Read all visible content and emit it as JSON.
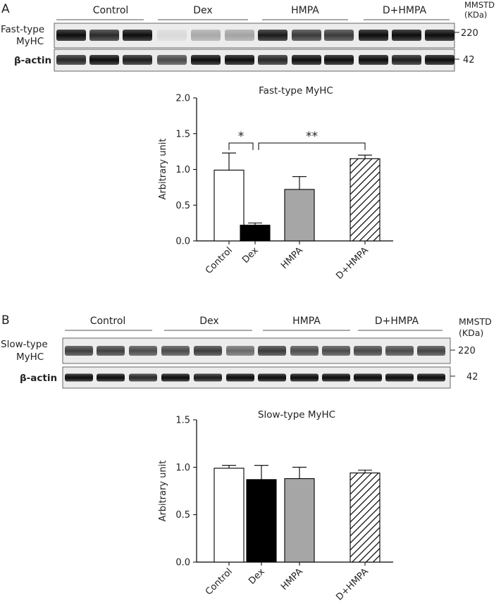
{
  "panel_a": {
    "letter": "A",
    "mmstd_line1": "MMSTD",
    "mmstd_line2": "(KDa)",
    "groups": [
      "Control",
      "Dex",
      "HMPA",
      "D+HMPA"
    ],
    "band1_label_line1": "Fast-type",
    "band1_label_line2": "MyHC",
    "band1_marker": "220",
    "band2_label": "β-actin",
    "band2_marker": "42",
    "significance": [
      "*",
      "**"
    ]
  },
  "panel_b": {
    "letter": "B",
    "mmstd_line1": "MMSTD",
    "mmstd_line2": "(KDa)",
    "groups": [
      "Control",
      "Dex",
      "HMPA",
      "D+HMPA"
    ],
    "band1_label_line1": "Slow-type",
    "band1_label_line2": "MyHC",
    "band1_marker": "220",
    "band2_label": "β-actin",
    "band2_marker": "42"
  },
  "colors": {
    "control": "#ffffff",
    "dex": "#000000",
    "hmpa": "#a6a6a6",
    "d_hmpa": "hatched"
  },
  "chart_data": [
    {
      "type": "bar",
      "title": "Fast-type MyHC",
      "xlabel": "",
      "ylabel": "Arbitrary unit",
      "categories": [
        "Control",
        "Dex",
        "HMPA",
        "D+HMPA"
      ],
      "values": [
        0.99,
        0.22,
        0.72,
        1.15
      ],
      "errors": [
        0.24,
        0.03,
        0.18,
        0.05
      ],
      "ylim": [
        0,
        2.0
      ],
      "yticks": [
        "0.0",
        "0.5",
        "1.0",
        "1.5",
        "2.0"
      ],
      "ytick_values": [
        0,
        0.5,
        1.0,
        1.5,
        2.0
      ],
      "annotations": [
        {
          "from": "Control",
          "to": "Dex",
          "text": "*"
        },
        {
          "from": "Dex",
          "to": "D+HMPA",
          "text": "**"
        }
      ]
    },
    {
      "type": "bar",
      "title": "Slow-type MyHC",
      "xlabel": "",
      "ylabel": "Arbitrary unit",
      "categories": [
        "Control",
        "Dex",
        "HMPA",
        "D+HMPA"
      ],
      "values": [
        0.99,
        0.87,
        0.88,
        0.94
      ],
      "errors": [
        0.03,
        0.15,
        0.12,
        0.03
      ],
      "ylim": [
        0,
        1.5
      ],
      "yticks": [
        "0.0",
        "0.5",
        "1.0",
        "1.5"
      ],
      "ytick_values": [
        0,
        0.5,
        1.0,
        1.5
      ]
    }
  ]
}
